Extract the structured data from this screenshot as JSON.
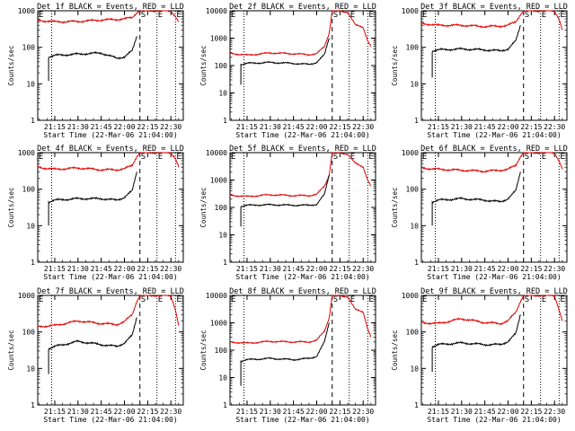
{
  "page": {
    "background": "#ffffff"
  },
  "colors": {
    "events": "#000000",
    "lld": "#e00000",
    "axis": "#000000"
  },
  "chart_data": [
    {
      "type": "line",
      "title": "Det 1f BLACK = Events, RED = LLD",
      "xlabel": "Start Time (22-Mar-06 21:04:00)",
      "ylabel": "Counts/sec",
      "x_ticks": [
        "21:15",
        "21:30",
        "21:45",
        "22:00",
        "22:15",
        "22:30"
      ],
      "y_ticks": [
        "1",
        "10",
        "100",
        "1000"
      ],
      "ylim": [
        1,
        1000
      ],
      "yscale": "log",
      "markers": [
        {
          "label": "S",
          "x": "22:10"
        },
        {
          "label": "E",
          "x": "22:21"
        },
        {
          "label": "E",
          "x": "22:33"
        }
      ],
      "series": [
        {
          "color": "#e00000",
          "x": [
            "21:04",
            "21:15",
            "21:30",
            "21:45",
            "21:55",
            "22:00",
            "22:05",
            "22:08",
            "22:10",
            "22:30",
            "22:33",
            "22:35"
          ],
          "y": [
            550,
            500,
            510,
            560,
            580,
            600,
            650,
            900,
            1000,
            1000,
            700,
            500
          ]
        },
        {
          "color": "#000000",
          "x": [
            "21:11",
            "21:11",
            "21:15",
            "21:30",
            "21:45",
            "21:55",
            "22:00",
            "22:05",
            "22:08"
          ],
          "y": [
            12,
            55,
            60,
            65,
            70,
            50,
            55,
            80,
            200
          ]
        }
      ]
    },
    {
      "type": "line",
      "title": "Det 2f BLACK = Events, RED = LLD",
      "xlabel": "Start Time (22-Mar-06 21:04:00)",
      "ylabel": "Counts/sec",
      "x_ticks": [
        "21:15",
        "21:30",
        "21:45",
        "22:00",
        "22:15",
        "22:30"
      ],
      "y_ticks": [
        "1",
        "10",
        "100",
        "1000",
        "10000"
      ],
      "ylim": [
        1,
        10000
      ],
      "yscale": "log",
      "markers": [
        {
          "label": "S",
          "x": "22:10"
        },
        {
          "label": "E",
          "x": "22:21"
        },
        {
          "label": "E",
          "x": "22:33"
        }
      ],
      "series": [
        {
          "color": "#e00000",
          "x": [
            "21:04",
            "21:15",
            "21:30",
            "21:45",
            "21:55",
            "22:00",
            "22:05",
            "22:08",
            "22:10",
            "22:20",
            "22:25",
            "22:30",
            "22:33",
            "22:35"
          ],
          "y": [
            280,
            240,
            290,
            270,
            250,
            270,
            500,
            1500,
            10000,
            9000,
            3000,
            2500,
            800,
            500
          ]
        },
        {
          "color": "#000000",
          "x": [
            "21:11",
            "21:11",
            "21:15",
            "21:30",
            "21:45",
            "21:55",
            "22:00",
            "22:05",
            "22:08"
          ],
          "y": [
            20,
            110,
            120,
            130,
            120,
            110,
            130,
            250,
            1000
          ]
        }
      ]
    },
    {
      "type": "line",
      "title": "Det 3f BLACK = Events, RED = LLD",
      "xlabel": "Start Time (22-Mar-06 21:04:00)",
      "ylabel": "Counts/sec",
      "x_ticks": [
        "21:15",
        "21:30",
        "21:45",
        "22:00",
        "22:15",
        "22:30"
      ],
      "y_ticks": [
        "1",
        "10",
        "100",
        "1000"
      ],
      "ylim": [
        1,
        1000
      ],
      "yscale": "log",
      "markers": [
        {
          "label": "S",
          "x": "22:10"
        },
        {
          "label": "E",
          "x": "22:21"
        },
        {
          "label": "E",
          "x": "22:33"
        }
      ],
      "series": [
        {
          "color": "#e00000",
          "x": [
            "21:04",
            "21:15",
            "21:30",
            "21:45",
            "21:55",
            "22:00",
            "22:05",
            "22:08",
            "22:10",
            "22:30",
            "22:33",
            "22:35"
          ],
          "y": [
            450,
            400,
            400,
            370,
            380,
            400,
            500,
            800,
            1000,
            1000,
            600,
            300
          ]
        },
        {
          "color": "#000000",
          "x": [
            "21:11",
            "21:11",
            "21:15",
            "21:30",
            "21:45",
            "21:55",
            "22:00",
            "22:05",
            "22:08"
          ],
          "y": [
            15,
            80,
            85,
            90,
            85,
            80,
            90,
            150,
            400
          ]
        }
      ]
    },
    {
      "type": "line",
      "title": "Det 4f BLACK = Events, RED = LLD",
      "xlabel": "Start Time (22-Mar-06 21:04:00)",
      "ylabel": "Counts/sec",
      "x_ticks": [
        "21:15",
        "21:30",
        "21:45",
        "22:00",
        "22:15",
        "22:30"
      ],
      "y_ticks": [
        "1",
        "10",
        "100",
        "1000"
      ],
      "ylim": [
        1,
        1000
      ],
      "yscale": "log",
      "markers": [
        {
          "label": "S",
          "x": "22:10"
        },
        {
          "label": "E",
          "x": "22:21"
        },
        {
          "label": "E",
          "x": "22:33"
        }
      ],
      "series": [
        {
          "color": "#e00000",
          "x": [
            "21:04",
            "21:15",
            "21:30",
            "21:45",
            "21:55",
            "22:00",
            "22:05",
            "22:08",
            "22:10",
            "22:30",
            "22:33",
            "22:35"
          ],
          "y": [
            400,
            350,
            380,
            340,
            340,
            360,
            450,
            800,
            1000,
            1000,
            700,
            400
          ]
        },
        {
          "color": "#000000",
          "x": [
            "21:11",
            "21:11",
            "21:15",
            "21:30",
            "21:45",
            "21:55",
            "22:00",
            "22:05",
            "22:08"
          ],
          "y": [
            10,
            45,
            50,
            55,
            55,
            50,
            60,
            90,
            300
          ]
        }
      ]
    },
    {
      "type": "line",
      "title": "Det 5f BLACK = Events, RED = LLD",
      "xlabel": "Start Time (22-Mar-06 21:04:00)",
      "ylabel": "Counts/sec",
      "x_ticks": [
        "21:15",
        "21:30",
        "21:45",
        "22:00",
        "22:15",
        "22:30"
      ],
      "y_ticks": [
        "1",
        "10",
        "100",
        "1000",
        "10000"
      ],
      "ylim": [
        1,
        10000
      ],
      "yscale": "log",
      "markers": [
        {
          "label": "S",
          "x": "22:10"
        },
        {
          "label": "E",
          "x": "22:21"
        },
        {
          "label": "E",
          "x": "22:33"
        }
      ],
      "series": [
        {
          "color": "#e00000",
          "x": [
            "21:04",
            "21:15",
            "21:30",
            "21:45",
            "21:55",
            "22:00",
            "22:05",
            "22:08",
            "22:10",
            "22:20",
            "22:25",
            "22:30",
            "22:33",
            "22:35"
          ],
          "y": [
            280,
            250,
            290,
            270,
            270,
            300,
            600,
            1500,
            10000,
            9000,
            4000,
            3000,
            1000,
            600
          ]
        },
        {
          "color": "#000000",
          "x": [
            "21:11",
            "21:11",
            "21:15",
            "21:30",
            "21:45",
            "21:55",
            "22:00",
            "22:05",
            "22:08"
          ],
          "y": [
            20,
            110,
            120,
            125,
            120,
            120,
            130,
            300,
            1500
          ]
        }
      ]
    },
    {
      "type": "line",
      "title": "Det 6f BLACK = Events, RED = LLD",
      "xlabel": "Start Time (22-Mar-06 21:04:00)",
      "ylabel": "Counts/sec",
      "x_ticks": [
        "21:15",
        "21:30",
        "21:45",
        "22:00",
        "22:15",
        "22:30"
      ],
      "y_ticks": [
        "1",
        "10",
        "100",
        "1000"
      ],
      "ylim": [
        1,
        1000
      ],
      "yscale": "log",
      "markers": [
        {
          "label": "S",
          "x": "22:10"
        },
        {
          "label": "E",
          "x": "22:21"
        },
        {
          "label": "E",
          "x": "22:33"
        }
      ],
      "series": [
        {
          "color": "#e00000",
          "x": [
            "21:04",
            "21:15",
            "21:30",
            "21:45",
            "21:55",
            "22:00",
            "22:05",
            "22:08",
            "22:10",
            "22:30",
            "22:33",
            "22:35"
          ],
          "y": [
            380,
            350,
            330,
            310,
            330,
            350,
            450,
            800,
            1000,
            1000,
            600,
            350
          ]
        },
        {
          "color": "#000000",
          "x": [
            "21:11",
            "21:11",
            "21:15",
            "21:30",
            "21:45",
            "21:55",
            "22:00",
            "22:05",
            "22:08"
          ],
          "y": [
            10,
            45,
            50,
            55,
            50,
            45,
            55,
            90,
            300
          ]
        }
      ]
    },
    {
      "type": "line",
      "title": "Det 7f BLACK = Events, RED = LLD",
      "xlabel": "Start Time (22-Mar-06 21:04:00)",
      "ylabel": "Counts/sec",
      "x_ticks": [
        "21:15",
        "21:30",
        "21:45",
        "22:00",
        "22:15",
        "22:30"
      ],
      "y_ticks": [
        "1",
        "10",
        "100",
        "1000"
      ],
      "ylim": [
        1,
        1000
      ],
      "yscale": "log",
      "markers": [
        {
          "label": "S",
          "x": "22:10"
        },
        {
          "label": "E",
          "x": "22:21"
        },
        {
          "label": "E",
          "x": "22:33"
        }
      ],
      "series": [
        {
          "color": "#e00000",
          "x": [
            "21:04",
            "21:15",
            "21:30",
            "21:45",
            "21:55",
            "22:00",
            "22:05",
            "22:08",
            "22:10",
            "22:30",
            "22:33",
            "22:35"
          ],
          "y": [
            140,
            150,
            200,
            170,
            160,
            190,
            300,
            700,
            1000,
            1000,
            400,
            150
          ]
        },
        {
          "color": "#000000",
          "x": [
            "21:11",
            "21:11",
            "21:15",
            "21:30",
            "21:45",
            "21:55",
            "22:00",
            "22:05",
            "22:08"
          ],
          "y": [
            7,
            35,
            40,
            55,
            45,
            40,
            50,
            80,
            250
          ]
        }
      ]
    },
    {
      "type": "line",
      "title": "Det 8f BLACK = Events, RED = LLD",
      "xlabel": "Start Time (22-Mar-06 21:04:00)",
      "ylabel": "Counts/sec",
      "x_ticks": [
        "21:15",
        "21:30",
        "21:45",
        "22:00",
        "22:15",
        "22:30"
      ],
      "y_ticks": [
        "1",
        "10",
        "100",
        "1000",
        "10000"
      ],
      "ylim": [
        1,
        10000
      ],
      "yscale": "log",
      "markers": [
        {
          "label": "S",
          "x": "22:10"
        },
        {
          "label": "E",
          "x": "22:21"
        },
        {
          "label": "E",
          "x": "22:33"
        }
      ],
      "series": [
        {
          "color": "#e00000",
          "x": [
            "21:04",
            "21:15",
            "21:30",
            "21:45",
            "21:55",
            "22:00",
            "22:05",
            "22:08",
            "22:10",
            "22:20",
            "22:25",
            "22:30",
            "22:33",
            "22:35"
          ],
          "y": [
            200,
            180,
            210,
            200,
            200,
            230,
            500,
            1500,
            10000,
            9000,
            3000,
            2500,
            600,
            300
          ]
        },
        {
          "color": "#000000",
          "x": [
            "21:11",
            "21:11",
            "21:15",
            "21:30",
            "21:45",
            "21:55",
            "22:00",
            "22:05",
            "22:08"
          ],
          "y": [
            5,
            40,
            45,
            50,
            45,
            50,
            60,
            200,
            1000
          ]
        }
      ]
    },
    {
      "type": "line",
      "title": "Det 9f BLACK = Events, RED = LLD",
      "xlabel": "Start Time (22-Mar-06 21:04:00)",
      "ylabel": "Counts/sec",
      "x_ticks": [
        "21:15",
        "21:30",
        "21:45",
        "22:00",
        "22:15",
        "22:30"
      ],
      "y_ticks": [
        "1",
        "10",
        "100",
        "1000"
      ],
      "ylim": [
        1,
        1000
      ],
      "yscale": "log",
      "markers": [
        {
          "label": "S",
          "x": "22:10"
        },
        {
          "label": "E",
          "x": "22:21"
        },
        {
          "label": "E",
          "x": "22:33"
        }
      ],
      "series": [
        {
          "color": "#e00000",
          "x": [
            "21:04",
            "21:15",
            "21:30",
            "21:45",
            "21:55",
            "22:00",
            "22:05",
            "22:08",
            "22:10",
            "22:30",
            "22:33",
            "22:35"
          ],
          "y": [
            180,
            170,
            230,
            180,
            170,
            200,
            350,
            700,
            1000,
            1000,
            400,
            200
          ]
        },
        {
          "color": "#000000",
          "x": [
            "21:11",
            "21:11",
            "21:15",
            "21:30",
            "21:45",
            "21:55",
            "22:00",
            "22:05",
            "22:08"
          ],
          "y": [
            8,
            40,
            45,
            50,
            45,
            45,
            55,
            90,
            300
          ]
        }
      ]
    }
  ]
}
